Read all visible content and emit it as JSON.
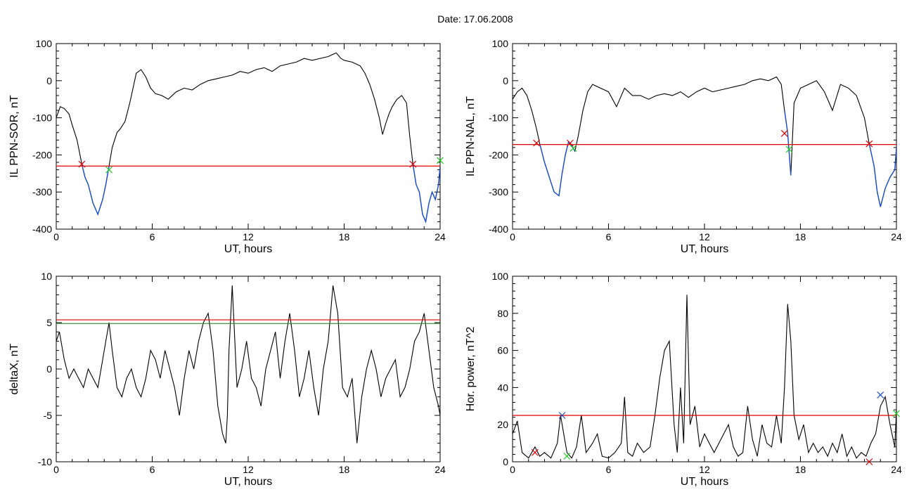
{
  "title": "Date:  17.06.2008",
  "colors": {
    "axis": "#000000",
    "threshold": "#dd0000",
    "secondary_threshold": "#2e8b2e",
    "highlight": "#1a4fd0",
    "marker_red": "#dd0000",
    "marker_green": "#22cc22",
    "marker_blue": "#1a4fd0"
  },
  "chart_data": [
    {
      "type": "line",
      "ylabel": "IL PPN-SOR, nT",
      "xlabel": "UT, hours",
      "xlim": [
        0,
        24
      ],
      "ylim": [
        -400,
        100
      ],
      "xticks": [
        0,
        6,
        12,
        18,
        24
      ],
      "yticks": [
        -400,
        -300,
        -200,
        -100,
        0,
        100
      ],
      "threshold": -230,
      "x": [
        0,
        0.25,
        0.5,
        0.8,
        1.0,
        1.3,
        1.6,
        1.8,
        2.0,
        2.3,
        2.6,
        2.9,
        3.1,
        3.3,
        3.5,
        3.8,
        4.0,
        4.3,
        4.6,
        4.8,
        5.0,
        5.3,
        5.6,
        5.9,
        6.2,
        6.6,
        7.0,
        7.5,
        8.0,
        8.5,
        9.0,
        9.5,
        10.0,
        10.5,
        11.0,
        11.5,
        12.0,
        12.5,
        13.0,
        13.5,
        14.0,
        14.5,
        15.0,
        15.5,
        16.0,
        16.5,
        17.0,
        17.5,
        17.8,
        18.0,
        18.5,
        19.0,
        19.3,
        19.6,
        19.9,
        20.2,
        20.4,
        20.6,
        20.8,
        21.0,
        21.3,
        21.6,
        21.9,
        22.1,
        22.3,
        22.5,
        22.7,
        22.9,
        23.1,
        23.3,
        23.5,
        23.7,
        23.9,
        24.0
      ],
      "y": [
        -100,
        -70,
        -75,
        -90,
        -120,
        -160,
        -225,
        -260,
        -280,
        -330,
        -360,
        -320,
        -280,
        -230,
        -180,
        -140,
        -130,
        -110,
        -60,
        -20,
        20,
        30,
        10,
        -20,
        -35,
        -40,
        -50,
        -30,
        -20,
        -25,
        -10,
        0,
        5,
        10,
        15,
        25,
        20,
        30,
        35,
        25,
        40,
        45,
        50,
        60,
        55,
        60,
        65,
        75,
        60,
        55,
        50,
        40,
        20,
        -10,
        -50,
        -100,
        -145,
        -115,
        -90,
        -70,
        -50,
        -40,
        -60,
        -150,
        -225,
        -280,
        -300,
        -360,
        -380,
        -330,
        -300,
        -320,
        -280,
        -230
      ],
      "highlight_ranges": [
        [
          1.6,
          3.3
        ],
        [
          22.3,
          24.0
        ]
      ],
      "markers": [
        {
          "x": 1.6,
          "y": -225,
          "color": "red"
        },
        {
          "x": 3.3,
          "y": -240,
          "color": "green"
        },
        {
          "x": 22.3,
          "y": -225,
          "color": "red"
        },
        {
          "x": 24.0,
          "y": -215,
          "color": "green"
        }
      ]
    },
    {
      "type": "line",
      "ylabel": "IL PPN-NAL, nT",
      "xlabel": "UT, hours",
      "xlim": [
        0,
        24
      ],
      "ylim": [
        -400,
        100
      ],
      "xticks": [
        0,
        6,
        12,
        18,
        24
      ],
      "yticks": [
        -400,
        -300,
        -200,
        -100,
        0,
        100
      ],
      "threshold": -172,
      "x": [
        0,
        0.3,
        0.6,
        0.9,
        1.2,
        1.5,
        1.7,
        2.0,
        2.3,
        2.6,
        2.9,
        3.1,
        3.3,
        3.5,
        3.7,
        3.9,
        4.1,
        4.4,
        4.7,
        5.0,
        5.5,
        6.0,
        6.5,
        7.0,
        7.5,
        8.0,
        8.5,
        9.0,
        9.5,
        10.0,
        10.5,
        11.0,
        11.5,
        12.0,
        12.5,
        13.0,
        13.5,
        14.0,
        14.5,
        15.0,
        15.5,
        16.0,
        16.5,
        16.8,
        17.0,
        17.2,
        17.4,
        17.6,
        18.0,
        18.5,
        19.0,
        19.5,
        20.0,
        20.5,
        21.0,
        21.5,
        22.0,
        22.3,
        22.6,
        22.8,
        23.0,
        23.3,
        23.6,
        23.9,
        24.0
      ],
      "y": [
        -50,
        -30,
        -20,
        -40,
        -80,
        -130,
        -170,
        -220,
        -260,
        -300,
        -310,
        -250,
        -200,
        -165,
        -175,
        -190,
        -150,
        -80,
        -30,
        -10,
        -20,
        -30,
        -70,
        -20,
        -40,
        -40,
        -50,
        -40,
        -35,
        -40,
        -30,
        -45,
        -30,
        -20,
        -30,
        -25,
        -20,
        -15,
        -10,
        0,
        5,
        0,
        10,
        -10,
        -80,
        -140,
        -255,
        -60,
        -20,
        -10,
        0,
        -30,
        -80,
        -10,
        -20,
        -40,
        -100,
        -170,
        -230,
        -300,
        -340,
        -290,
        -260,
        -240,
        -180
      ],
      "highlight_ranges": [
        [
          1.6,
          4.0
        ],
        [
          17.0,
          17.4
        ],
        [
          22.3,
          24.0
        ]
      ],
      "markers": [
        {
          "x": 1.5,
          "y": -168,
          "color": "red"
        },
        {
          "x": 3.6,
          "y": -168,
          "color": "red"
        },
        {
          "x": 3.8,
          "y": -182,
          "color": "green"
        },
        {
          "x": 17.0,
          "y": -142,
          "color": "red"
        },
        {
          "x": 17.3,
          "y": -185,
          "color": "green"
        },
        {
          "x": 22.3,
          "y": -170,
          "color": "red"
        }
      ]
    },
    {
      "type": "line",
      "ylabel": "deltaX, nT",
      "xlabel": "UT, hours",
      "xlim": [
        0,
        24
      ],
      "ylim": [
        -10,
        10
      ],
      "xticks": [
        0,
        6,
        12,
        18,
        24
      ],
      "yticks": [
        -10,
        -5,
        0,
        5,
        10
      ],
      "threshold": 5.3,
      "secondary_threshold": 4.9,
      "x": [
        0,
        0.2,
        0.5,
        0.8,
        1.1,
        1.4,
        1.7,
        2.0,
        2.3,
        2.6,
        2.9,
        3.1,
        3.3,
        3.5,
        3.8,
        4.1,
        4.4,
        4.7,
        5.0,
        5.3,
        5.6,
        5.9,
        6.2,
        6.5,
        6.8,
        7.1,
        7.4,
        7.7,
        8.0,
        8.3,
        8.6,
        8.9,
        9.2,
        9.5,
        9.8,
        10.1,
        10.4,
        10.6,
        10.7,
        10.8,
        11.0,
        11.3,
        11.6,
        11.9,
        12.2,
        12.5,
        12.8,
        13.1,
        13.4,
        13.7,
        14.0,
        14.3,
        14.6,
        14.9,
        15.2,
        15.5,
        15.8,
        16.1,
        16.4,
        16.7,
        17.0,
        17.3,
        17.6,
        17.9,
        18.2,
        18.5,
        18.8,
        19.1,
        19.4,
        19.7,
        20.0,
        20.3,
        20.6,
        20.9,
        21.2,
        21.5,
        21.8,
        22.1,
        22.4,
        22.7,
        23.0,
        23.3,
        23.6,
        23.9,
        24.0
      ],
      "y": [
        3,
        4,
        1,
        -1,
        0,
        -1,
        -2,
        0,
        -1,
        -2,
        1,
        3,
        5,
        2,
        -2,
        -3,
        -1,
        0,
        -2,
        -3,
        -1,
        2,
        1,
        -1,
        2,
        0,
        -2,
        -5,
        -1,
        2,
        0,
        3,
        5,
        6,
        2,
        -4,
        -7,
        -8,
        -5,
        2,
        9,
        -2,
        0,
        3,
        -1,
        -2,
        -4,
        0,
        2,
        4,
        -1,
        3,
        6,
        2,
        -3,
        -1,
        2,
        -2,
        -5,
        0,
        3,
        9,
        6,
        -2,
        -3,
        -1,
        -8,
        -3,
        0,
        2,
        0,
        -3,
        -1,
        0,
        1,
        -3,
        -2,
        0,
        3,
        4,
        6,
        2,
        -2,
        -4,
        -5
      ]
    },
    {
      "type": "line",
      "ylabel": "Hor. power, nT^2",
      "xlabel": "UT, hours",
      "xlim": [
        0,
        24
      ],
      "ylim": [
        0,
        100
      ],
      "xticks": [
        0,
        6,
        12,
        18,
        24
      ],
      "yticks": [
        0,
        20,
        40,
        60,
        80,
        100
      ],
      "threshold": 25,
      "x": [
        0,
        0.3,
        0.6,
        1.0,
        1.4,
        1.7,
        2.0,
        2.4,
        2.8,
        3.0,
        3.2,
        3.4,
        3.7,
        4.0,
        4.3,
        4.6,
        5.0,
        5.3,
        5.6,
        6.0,
        6.4,
        6.8,
        7.0,
        7.2,
        7.5,
        7.8,
        8.2,
        8.6,
        8.9,
        9.2,
        9.5,
        9.8,
        10.1,
        10.3,
        10.5,
        10.7,
        10.9,
        11.1,
        11.4,
        11.7,
        12.0,
        12.3,
        12.6,
        12.9,
        13.2,
        13.5,
        13.8,
        14.1,
        14.4,
        14.7,
        15.0,
        15.3,
        15.6,
        15.9,
        16.2,
        16.5,
        16.8,
        17.0,
        17.2,
        17.4,
        17.6,
        17.9,
        18.2,
        18.5,
        18.8,
        19.1,
        19.4,
        19.7,
        20.0,
        20.3,
        20.6,
        20.9,
        21.2,
        21.5,
        21.8,
        22.1,
        22.4,
        22.7,
        23.0,
        23.3,
        23.6,
        23.9,
        24.0
      ],
      "y": [
        15,
        22,
        5,
        2,
        8,
        3,
        5,
        2,
        10,
        25,
        15,
        5,
        2,
        8,
        25,
        5,
        10,
        15,
        3,
        2,
        5,
        10,
        35,
        5,
        3,
        10,
        5,
        8,
        25,
        45,
        60,
        65,
        20,
        5,
        40,
        10,
        90,
        20,
        30,
        8,
        15,
        10,
        5,
        10,
        15,
        20,
        8,
        3,
        5,
        30,
        12,
        3,
        20,
        10,
        8,
        25,
        10,
        40,
        85,
        65,
        25,
        12,
        20,
        5,
        10,
        5,
        8,
        3,
        10,
        5,
        15,
        3,
        8,
        2,
        5,
        3,
        10,
        15,
        30,
        35,
        20,
        8,
        28
      ],
      "markers": [
        {
          "x": 1.4,
          "y": 5,
          "color": "red"
        },
        {
          "x": 3.1,
          "y": 25,
          "color": "blue"
        },
        {
          "x": 3.4,
          "y": 3,
          "color": "green"
        },
        {
          "x": 22.3,
          "y": 0,
          "color": "red"
        },
        {
          "x": 23.0,
          "y": 36,
          "color": "blue"
        },
        {
          "x": 24.0,
          "y": 26,
          "color": "green"
        }
      ]
    }
  ]
}
